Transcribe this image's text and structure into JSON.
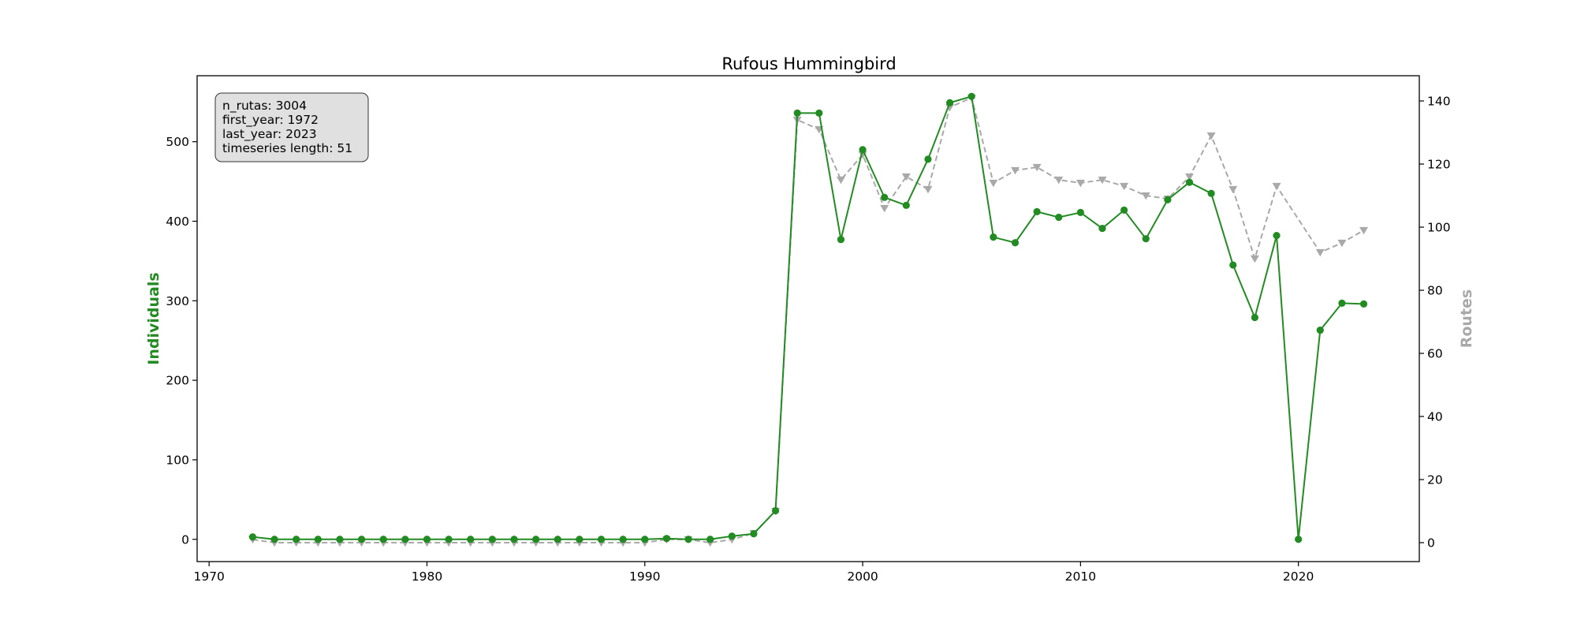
{
  "chart_data": {
    "type": "line",
    "title": "Rufous Hummingbird",
    "xlabel": "",
    "ylabel": "Individuals",
    "y2label": "Routes",
    "xlim": [
      1969.45,
      2025.55
    ],
    "ylim": [
      -28,
      583
    ],
    "y2lim": [
      -6,
      148
    ],
    "xticks": [
      1970,
      1980,
      1990,
      2000,
      2010,
      2020
    ],
    "yticks": [
      0,
      100,
      200,
      300,
      400,
      500
    ],
    "y2ticks": [
      0,
      20,
      40,
      60,
      80,
      100,
      120,
      140
    ],
    "grid": false,
    "colors": {
      "individuals": "#228b22",
      "routes": "#a9a9a9"
    },
    "infobox": {
      "lines": [
        "n_rutas: 3004",
        "first_year: 1972",
        "last_year: 2023",
        "timeseries length: 51"
      ]
    },
    "x": [
      1972,
      1973,
      1974,
      1975,
      1976,
      1977,
      1978,
      1979,
      1980,
      1981,
      1982,
      1983,
      1984,
      1985,
      1986,
      1987,
      1988,
      1989,
      1990,
      1991,
      1992,
      1993,
      1994,
      1995,
      1996,
      1997,
      1998,
      1999,
      2000,
      2001,
      2002,
      2003,
      2004,
      2005,
      2006,
      2007,
      2008,
      2009,
      2010,
      2011,
      2012,
      2013,
      2014,
      2015,
      2016,
      2017,
      2018,
      2019,
      2020,
      2021,
      2022,
      2023
    ],
    "series": [
      {
        "axis": "left",
        "values": [
          3,
          0,
          0,
          0,
          0,
          0,
          0,
          0,
          0,
          0,
          0,
          0,
          0,
          0,
          0,
          0,
          0,
          0,
          0,
          1,
          0,
          0,
          4,
          7,
          36,
          536,
          536,
          377,
          490,
          430,
          420,
          478,
          549,
          557,
          380,
          373,
          412,
          405,
          411,
          391,
          414,
          378,
          427,
          449,
          435,
          345,
          279,
          382,
          0,
          263,
          297,
          296
        ]
      },
      {
        "axis": "right",
        "values": [
          1,
          0,
          0,
          0,
          0,
          0,
          0,
          0,
          0,
          0,
          0,
          0,
          0,
          0,
          0,
          0,
          0,
          0,
          0,
          1,
          1,
          0,
          1,
          3,
          10,
          134,
          131,
          115,
          123,
          106,
          116,
          112,
          138,
          141,
          114,
          118,
          119,
          115,
          114,
          115,
          113,
          110,
          109,
          116,
          129,
          112,
          90,
          113,
          null,
          92,
          95,
          99
        ]
      }
    ]
  }
}
